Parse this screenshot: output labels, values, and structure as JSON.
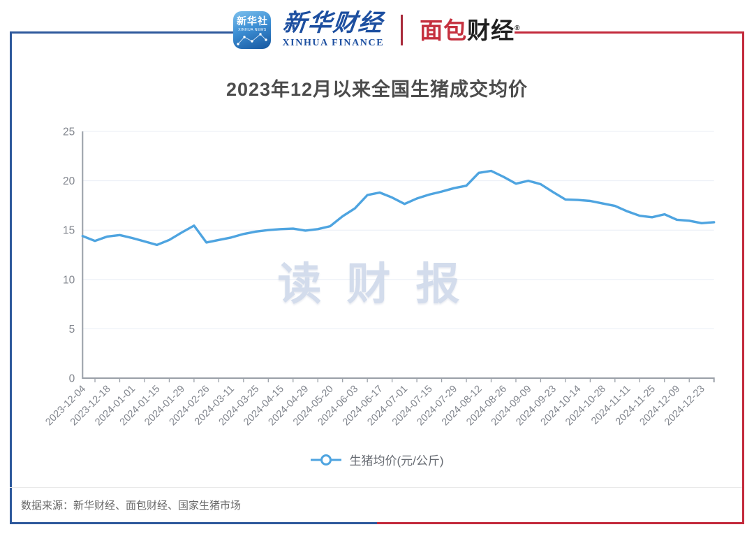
{
  "header": {
    "xinhua_news_icon": {
      "line1": "新华社",
      "line2": "XINHUA NEWS"
    },
    "xinhua_finance": {
      "cn": "新华财经",
      "en": "XINHUA FINANCE"
    },
    "mianbao_caijing": {
      "part1": "面包",
      "part2": "财经",
      "reg": "®"
    }
  },
  "title": "2023年12月以来全国生猪成交均价",
  "watermark": "读财报",
  "chart_data": {
    "type": "line",
    "title": "2023年12月以来全国生猪成交均价",
    "x_labels": [
      "2023-12-04",
      "2023-12-18",
      "2024-01-01",
      "2024-01-15",
      "2024-01-29",
      "2024-02-26",
      "2024-03-11",
      "2024-03-25",
      "2024-04-15",
      "2024-04-29",
      "2024-05-20",
      "2024-06-03",
      "2024-06-17",
      "2024-07-01",
      "2024-07-15",
      "2024-07-29",
      "2024-08-12",
      "2024-08-26",
      "2024-09-09",
      "2024-09-23",
      "2024-10-14",
      "2024-10-28",
      "2024-11-11",
      "2024-11-25",
      "2024-12-09",
      "2024-12-23"
    ],
    "label_every_n_points": 2,
    "values": [
      14.4,
      13.9,
      14.35,
      14.5,
      14.2,
      13.85,
      13.5,
      14.0,
      14.75,
      15.45,
      13.75,
      14.0,
      14.25,
      14.6,
      14.85,
      15.0,
      15.1,
      15.15,
      14.95,
      15.1,
      15.4,
      16.4,
      17.2,
      18.55,
      18.8,
      18.3,
      17.65,
      18.2,
      18.6,
      18.9,
      19.25,
      19.5,
      20.8,
      21.0,
      20.4,
      19.7,
      20.0,
      19.65,
      18.85,
      18.1,
      18.05,
      17.95,
      17.7,
      17.45,
      16.9,
      16.45,
      16.3,
      16.6,
      16.05,
      15.95,
      15.7,
      15.8
    ],
    "ylim": [
      0,
      25
    ],
    "yticks": [
      0,
      5,
      10,
      15,
      20,
      25
    ],
    "grid": true,
    "legend_position": "bottom",
    "legend": [
      {
        "name": "生猪均价(元/公斤)",
        "color": "#4ea4e0",
        "marker": "circle-line"
      }
    ]
  },
  "footer": {
    "source": "数据来源：新华财经、面包财经、国家生猪市场"
  },
  "colors": {
    "line": "#4ea4e0",
    "frame_blue": "#2e599c",
    "frame_red": "#c32a3c",
    "grid_line": "#e9eef6",
    "axis_line": "#9aa0a8",
    "tick_label": "#82868e",
    "title_text": "#4c4c4c",
    "watermark_text": "#ccd7e9",
    "legend_text": "#676b72",
    "footer_text": "#686868"
  }
}
